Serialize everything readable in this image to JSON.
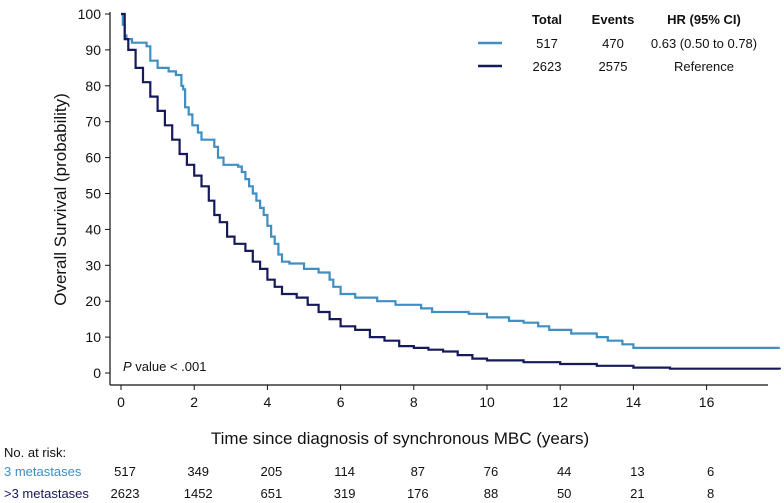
{
  "chart_data": {
    "type": "line",
    "subtype": "kaplan-meier",
    "xlabel": "Time since diagnosis of synchronous MBC (years)",
    "ylabel": "Overall Survival (probability)",
    "xlim": [
      0,
      18
    ],
    "ylim": [
      0,
      100
    ],
    "x_ticks": [
      0,
      2,
      4,
      6,
      8,
      10,
      12,
      14,
      16
    ],
    "y_ticks": [
      0,
      10,
      20,
      30,
      40,
      50,
      60,
      70,
      80,
      90,
      100
    ],
    "grid": false,
    "p_value": {
      "italic": "P",
      "rest": " value < .001"
    },
    "table_headers": {
      "total": "Total",
      "events": "Events",
      "hr": "HR (95% CI)"
    },
    "series": [
      {
        "name": "3 metastases",
        "color": "#3f8fc2",
        "total": "517",
        "events": "470",
        "hr": "0.63 (0.50 to 0.78)",
        "points": [
          [
            0,
            100
          ],
          [
            0.05,
            97
          ],
          [
            0.1,
            94
          ],
          [
            0.15,
            93
          ],
          [
            0.3,
            92
          ],
          [
            0.7,
            91
          ],
          [
            0.8,
            87
          ],
          [
            1.0,
            85
          ],
          [
            1.3,
            84
          ],
          [
            1.5,
            83
          ],
          [
            1.65,
            80
          ],
          [
            1.7,
            79
          ],
          [
            1.75,
            74
          ],
          [
            1.85,
            72
          ],
          [
            1.95,
            69
          ],
          [
            2.1,
            67
          ],
          [
            2.2,
            65
          ],
          [
            2.55,
            63
          ],
          [
            2.65,
            60
          ],
          [
            2.8,
            58
          ],
          [
            3.2,
            57.5
          ],
          [
            3.3,
            56
          ],
          [
            3.4,
            54
          ],
          [
            3.5,
            52
          ],
          [
            3.6,
            50
          ],
          [
            3.7,
            48
          ],
          [
            3.8,
            46
          ],
          [
            3.9,
            44
          ],
          [
            4.0,
            41
          ],
          [
            4.1,
            38
          ],
          [
            4.2,
            36
          ],
          [
            4.3,
            33
          ],
          [
            4.4,
            31
          ],
          [
            4.6,
            30.5
          ],
          [
            5.0,
            29
          ],
          [
            5.4,
            28
          ],
          [
            5.7,
            26
          ],
          [
            5.8,
            24
          ],
          [
            6.0,
            22
          ],
          [
            6.4,
            21
          ],
          [
            7.0,
            20
          ],
          [
            7.5,
            19
          ],
          [
            8.2,
            18
          ],
          [
            8.5,
            17
          ],
          [
            9.5,
            16.5
          ],
          [
            10.0,
            15.5
          ],
          [
            10.6,
            14.5
          ],
          [
            11.0,
            14
          ],
          [
            11.4,
            13
          ],
          [
            11.7,
            12
          ],
          [
            12.3,
            11
          ],
          [
            13.0,
            10
          ],
          [
            13.3,
            9
          ],
          [
            13.7,
            8
          ],
          [
            14.0,
            7
          ],
          [
            18.0,
            7
          ]
        ]
      },
      {
        "name": ">3 metastases",
        "color": "#16195a",
        "total": "2623",
        "events": "2575",
        "hr": "Reference",
        "points": [
          [
            0,
            100
          ],
          [
            0.1,
            93
          ],
          [
            0.2,
            90
          ],
          [
            0.4,
            85
          ],
          [
            0.6,
            81
          ],
          [
            0.8,
            77
          ],
          [
            1.0,
            73
          ],
          [
            1.2,
            69
          ],
          [
            1.4,
            65
          ],
          [
            1.6,
            61
          ],
          [
            1.8,
            58
          ],
          [
            2.0,
            55
          ],
          [
            2.2,
            52
          ],
          [
            2.4,
            48
          ],
          [
            2.55,
            44
          ],
          [
            2.7,
            42
          ],
          [
            2.9,
            38
          ],
          [
            3.1,
            36
          ],
          [
            3.4,
            34
          ],
          [
            3.6,
            31
          ],
          [
            3.8,
            29
          ],
          [
            4.0,
            26
          ],
          [
            4.2,
            24
          ],
          [
            4.4,
            22
          ],
          [
            4.8,
            21
          ],
          [
            5.1,
            19
          ],
          [
            5.4,
            17
          ],
          [
            5.7,
            15
          ],
          [
            6.0,
            13
          ],
          [
            6.4,
            12
          ],
          [
            6.8,
            10
          ],
          [
            7.2,
            9
          ],
          [
            7.6,
            7.5
          ],
          [
            8.0,
            7
          ],
          [
            8.4,
            6.5
          ],
          [
            8.8,
            6
          ],
          [
            9.2,
            5
          ],
          [
            9.6,
            4
          ],
          [
            10.0,
            3.5
          ],
          [
            11.0,
            3
          ],
          [
            12.0,
            2.5
          ],
          [
            13.0,
            2
          ],
          [
            14.0,
            1.5
          ],
          [
            15.0,
            1.2
          ],
          [
            18.0,
            1
          ]
        ]
      }
    ],
    "risk_table": {
      "label": "No. at risk:",
      "x_positions": [
        0,
        2,
        4,
        6,
        8,
        10,
        12,
        14,
        16
      ],
      "rows": [
        {
          "name": "3 metastases",
          "color": "#3f8fc2",
          "values": [
            "517",
            "349",
            "205",
            "114",
            "87",
            "76",
            "44",
            "13",
            "6"
          ]
        },
        {
          "name": ">3 metastases",
          "color": "#16195a",
          "values": [
            "2623",
            "1452",
            "651",
            "319",
            "176",
            "88",
            "50",
            "21",
            "8"
          ]
        }
      ]
    }
  }
}
